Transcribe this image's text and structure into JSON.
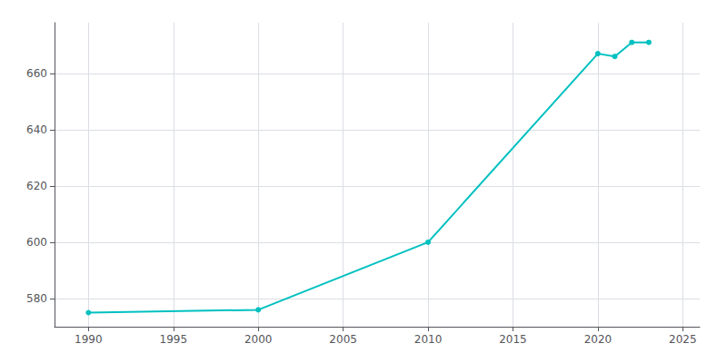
{
  "chart_data": {
    "type": "line",
    "x": [
      1990,
      2000,
      2010,
      2020,
      2021,
      2022,
      2023
    ],
    "values": [
      575,
      576,
      600,
      667,
      666,
      671,
      671
    ],
    "color": "#00C0C0",
    "marker": "circle",
    "xlim": [
      1988,
      2026
    ],
    "ylim": [
      570,
      678
    ],
    "xticks": [
      1990,
      1995,
      2000,
      2005,
      2010,
      2015,
      2020,
      2025
    ],
    "yticks": [
      580,
      600,
      620,
      640,
      660
    ],
    "grid": true
  }
}
